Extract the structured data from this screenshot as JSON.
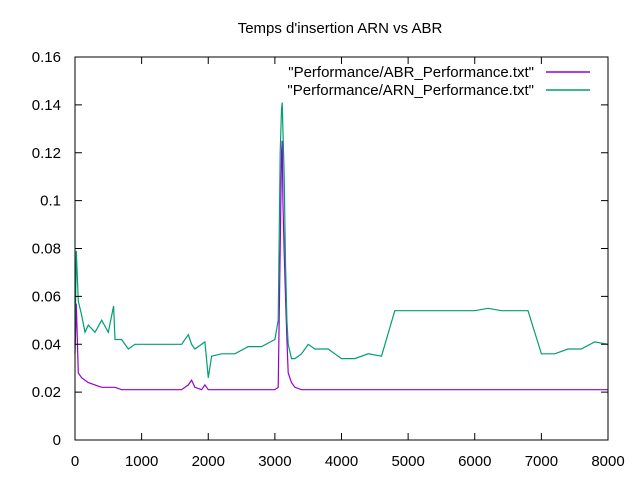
{
  "chart_data": {
    "type": "line",
    "title": "Temps d'insertion ARN vs ABR",
    "xlabel": "",
    "ylabel": "",
    "xlim": [
      0,
      8000
    ],
    "ylim": [
      0,
      0.16
    ],
    "x_ticks": [
      0,
      1000,
      2000,
      3000,
      4000,
      5000,
      6000,
      7000,
      8000
    ],
    "y_ticks": [
      0,
      0.02,
      0.04,
      0.06,
      0.08,
      0.1,
      0.12,
      0.14,
      0.16
    ],
    "x_tick_labels": [
      "0",
      "1000",
      "2000",
      "3000",
      "4000",
      "5000",
      "6000",
      "7000",
      "8000"
    ],
    "y_tick_labels": [
      "0",
      "0.02",
      "0.04",
      "0.06",
      "0.08",
      "0.1",
      "0.12",
      "0.14",
      "0.16"
    ],
    "grid": false,
    "legend_position": "top-right",
    "series": [
      {
        "name": "\"Performance/ABR_Performance.txt\"",
        "color": "#9400d3",
        "x": [
          0,
          20,
          50,
          100,
          200,
          300,
          400,
          500,
          600,
          700,
          800,
          900,
          1000,
          1200,
          1400,
          1600,
          1700,
          1750,
          1800,
          1900,
          1950,
          2000,
          2050,
          2200,
          2400,
          2600,
          2800,
          3000,
          3050,
          3080,
          3100,
          3110,
          3120,
          3140,
          3160,
          3180,
          3200,
          3250,
          3300,
          3400,
          3500,
          3600,
          3700,
          3800,
          3900,
          4000,
          4200,
          4400,
          4600,
          4800,
          5000,
          5200,
          5400,
          5600,
          5800,
          6000,
          6200,
          6400,
          6600,
          6800,
          7000,
          7200,
          7400,
          7600,
          7800,
          8000
        ],
        "values": [
          0.036,
          0.057,
          0.028,
          0.026,
          0.024,
          0.023,
          0.022,
          0.022,
          0.022,
          0.021,
          0.021,
          0.021,
          0.021,
          0.021,
          0.021,
          0.021,
          0.023,
          0.025,
          0.022,
          0.021,
          0.023,
          0.021,
          0.021,
          0.021,
          0.021,
          0.021,
          0.021,
          0.021,
          0.022,
          0.08,
          0.12,
          0.125,
          0.1,
          0.078,
          0.06,
          0.042,
          0.028,
          0.024,
          0.022,
          0.021,
          0.021,
          0.021,
          0.021,
          0.021,
          0.021,
          0.021,
          0.021,
          0.021,
          0.021,
          0.021,
          0.021,
          0.021,
          0.021,
          0.021,
          0.021,
          0.021,
          0.021,
          0.021,
          0.021,
          0.021,
          0.021,
          0.021,
          0.021,
          0.021,
          0.021,
          0.021
        ]
      },
      {
        "name": "\"Performance/ARN_Performance.txt\"",
        "color": "#009e73",
        "x": [
          0,
          20,
          50,
          100,
          150,
          200,
          300,
          400,
          500,
          580,
          600,
          700,
          800,
          900,
          1000,
          1200,
          1400,
          1600,
          1700,
          1750,
          1800,
          1900,
          1950,
          2000,
          2050,
          2200,
          2400,
          2600,
          2800,
          3000,
          3050,
          3080,
          3100,
          3110,
          3120,
          3140,
          3160,
          3180,
          3200,
          3250,
          3300,
          3400,
          3500,
          3600,
          3700,
          3800,
          3900,
          4000,
          4200,
          4400,
          4600,
          4800,
          5000,
          5200,
          5400,
          5600,
          5800,
          6000,
          6200,
          6400,
          6600,
          6800,
          7000,
          7200,
          7400,
          7600,
          7800,
          8000
        ],
        "values": [
          0.04,
          0.079,
          0.058,
          0.052,
          0.045,
          0.048,
          0.045,
          0.05,
          0.045,
          0.056,
          0.042,
          0.042,
          0.038,
          0.04,
          0.04,
          0.04,
          0.04,
          0.04,
          0.044,
          0.04,
          0.038,
          0.04,
          0.041,
          0.026,
          0.035,
          0.036,
          0.036,
          0.039,
          0.039,
          0.042,
          0.05,
          0.12,
          0.138,
          0.141,
          0.13,
          0.11,
          0.074,
          0.05,
          0.04,
          0.034,
          0.034,
          0.036,
          0.04,
          0.038,
          0.038,
          0.038,
          0.036,
          0.034,
          0.034,
          0.036,
          0.035,
          0.054,
          0.054,
          0.054,
          0.054,
          0.054,
          0.054,
          0.054,
          0.055,
          0.054,
          0.054,
          0.054,
          0.036,
          0.036,
          0.038,
          0.038,
          0.041,
          0.04
        ]
      }
    ]
  }
}
